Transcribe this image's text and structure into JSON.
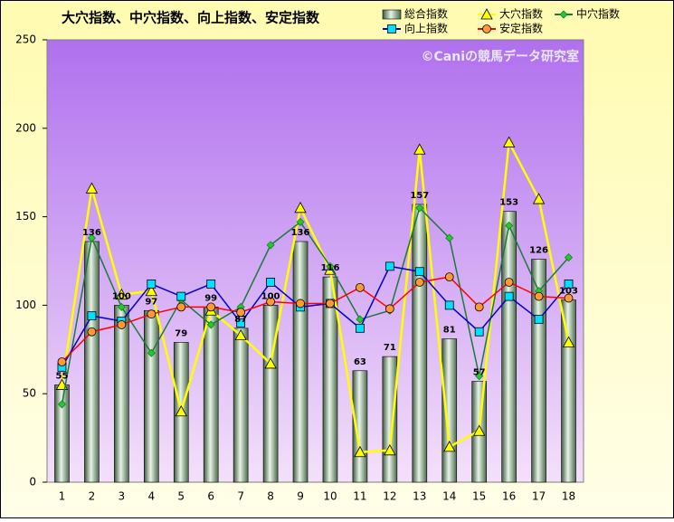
{
  "chart_data": {
    "type": "combo",
    "title": "大穴指数、中穴指数、向上指数、安定指数",
    "annotation": "©Caniの競馬データ研究室",
    "categories": [
      "1",
      "2",
      "3",
      "4",
      "5",
      "6",
      "7",
      "8",
      "9",
      "10",
      "11",
      "12",
      "13",
      "14",
      "15",
      "16",
      "17",
      "18"
    ],
    "series": [
      {
        "name": "総合指数",
        "type": "bar",
        "color": "#8fb08f",
        "values": [
          55,
          136,
          100,
          97,
          79,
          99,
          87,
          100,
          136,
          116,
          63,
          71,
          157,
          81,
          57,
          153,
          126,
          103
        ]
      },
      {
        "name": "大穴指数",
        "type": "line",
        "color": "#ffff00",
        "marker_color": "#ffff00",
        "values": [
          55,
          166,
          106,
          108,
          40,
          97,
          83,
          67,
          155,
          120,
          17,
          18,
          188,
          20,
          29,
          192,
          160,
          79
        ]
      },
      {
        "name": "中穴指数",
        "type": "line",
        "color": "#1a7a3a",
        "marker_color": "#22cc22",
        "values": [
          44,
          138,
          99,
          73,
          103,
          89,
          99,
          134,
          147,
          122,
          92,
          97,
          155,
          138,
          60,
          145,
          108,
          127
        ]
      },
      {
        "name": "向上指数",
        "type": "line",
        "color": "#0000cc",
        "marker_color": "#00e0ff",
        "values": [
          65,
          94,
          91,
          112,
          105,
          112,
          90,
          113,
          99,
          101,
          87,
          122,
          119,
          100,
          85,
          105,
          92,
          112
        ]
      },
      {
        "name": "安定指数",
        "type": "line",
        "color": "#ff0000",
        "marker_color": "#ff9933",
        "values": [
          68,
          85,
          89,
          95,
          99,
          99,
          96,
          102,
          101,
          101,
          110,
          98,
          113,
          116,
          99,
          113,
          105,
          104
        ]
      }
    ],
    "ylim": [
      0,
      250
    ],
    "yticks": [
      0,
      50,
      100,
      150,
      200,
      250
    ],
    "grid": false
  }
}
